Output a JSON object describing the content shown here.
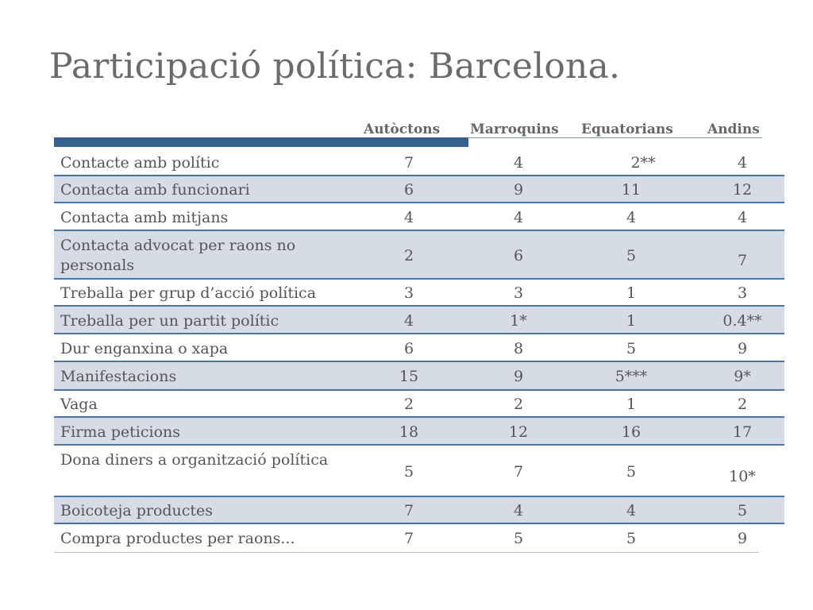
{
  "slide": {
    "title": "Participació política: Barcelona."
  },
  "table": {
    "headers": [
      "Autòctons",
      "Marroquins",
      "Equatorians",
      "Andins"
    ],
    "rows": [
      {
        "label": "Contacte amb polític",
        "values": [
          "7",
          "4",
          "2**",
          "4"
        ]
      },
      {
        "label": "Contacta amb funcionari",
        "values": [
          "6",
          "9",
          "11",
          "12"
        ]
      },
      {
        "label": "Contacta amb mitjans",
        "values": [
          "4",
          "4",
          "4",
          "4"
        ]
      },
      {
        "label": "Contacta advocat per raons no personals",
        "label_lines": [
          "Contacta advocat per raons no",
          "personals"
        ],
        "values": [
          "2",
          "6",
          "5",
          "7"
        ]
      },
      {
        "label": "Treballa per grup d’acció política",
        "values": [
          "3",
          "3",
          "1",
          "3"
        ]
      },
      {
        "label": "Treballa per un partit polític",
        "values": [
          "4",
          "1*",
          "1",
          "0.4**"
        ]
      },
      {
        "label": "Dur enganxina o xapa",
        "values": [
          "6",
          "8",
          "5",
          "9"
        ]
      },
      {
        "label": "Manifestacions",
        "values": [
          "15",
          "9",
          "5***",
          "9*"
        ]
      },
      {
        "label": "Vaga",
        "values": [
          "2",
          "2",
          "1",
          "2"
        ]
      },
      {
        "label": "Firma peticions",
        "values": [
          "18",
          "12",
          "16",
          "17"
        ]
      },
      {
        "label": "Dona diners a organització política",
        "label_lines": [
          "Dona diners a organització",
          "política"
        ],
        "values": [
          "5",
          "7",
          "5",
          "10*"
        ]
      },
      {
        "label": "Boicoteja productes",
        "values": [
          "7",
          "4",
          "4",
          "5"
        ]
      },
      {
        "label": "Compra productes per raons...",
        "values": [
          "7",
          "5",
          "5",
          "9"
        ]
      }
    ]
  },
  "colors": {
    "header_bar": "#34628f",
    "row_shade": "#d6dce5",
    "row_border": "#4a76a2",
    "title_text": "#6b6b6b",
    "body_text": "#555555"
  }
}
